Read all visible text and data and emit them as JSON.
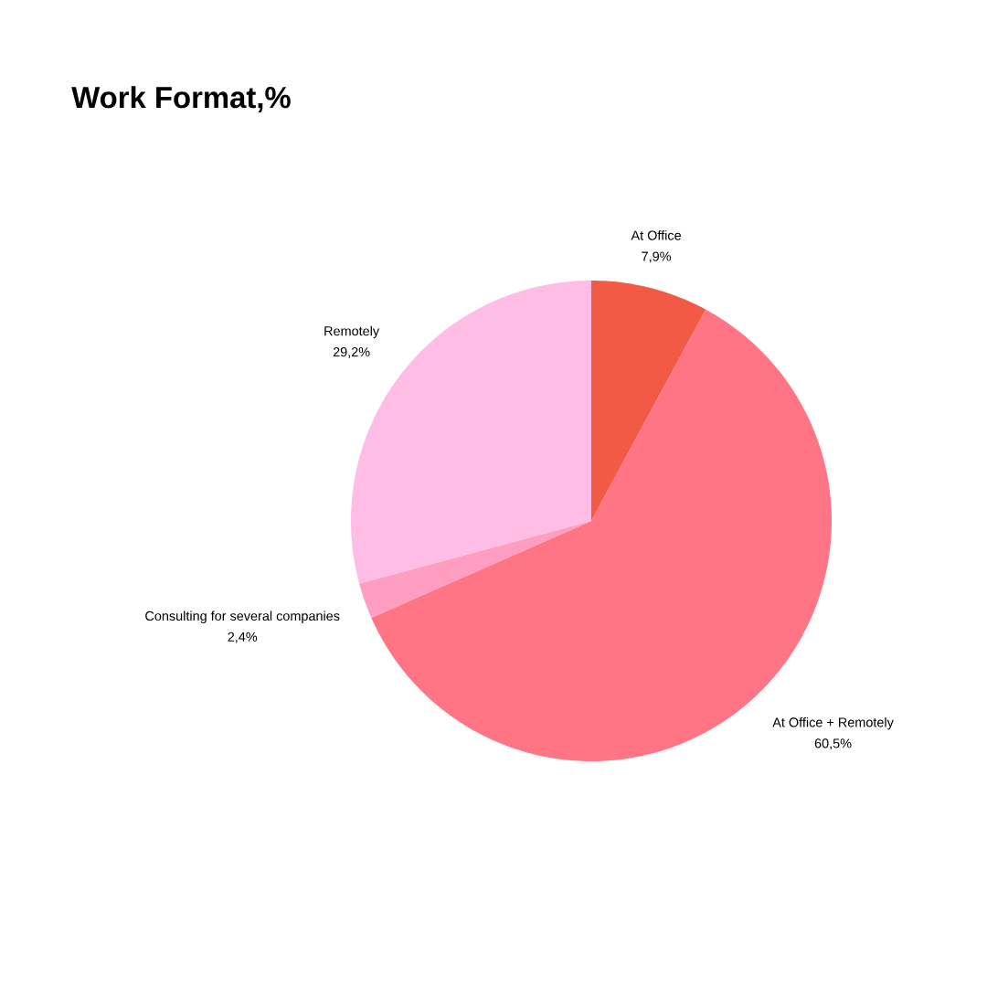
{
  "chart_data": {
    "type": "pie",
    "title": "Work Format,%",
    "categories": [
      "At Office",
      "At Office + Remotely",
      "Consulting for several companies",
      "Remotely"
    ],
    "values": [
      7.9,
      60.5,
      2.4,
      29.2
    ],
    "value_labels": [
      "7,9%",
      "60,5%",
      "2,4%",
      "29,2%"
    ],
    "colors": [
      "#f25a45",
      "#ff7585",
      "#ff9ec0",
      "#ffbde6"
    ]
  }
}
